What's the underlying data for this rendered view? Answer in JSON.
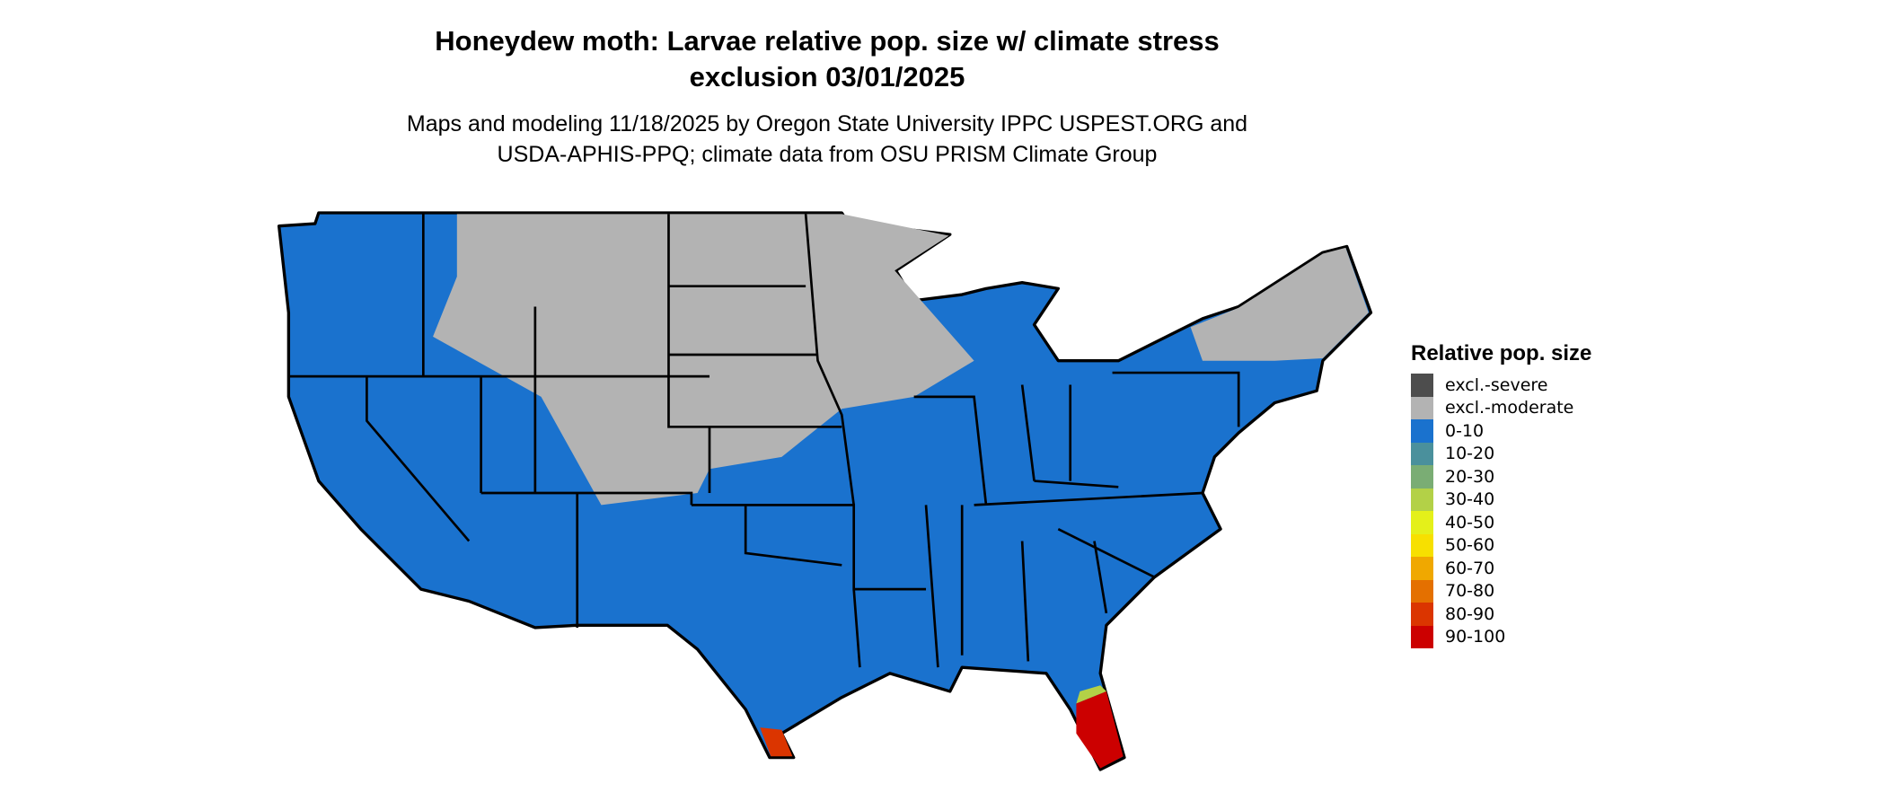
{
  "title_line1": "Honeydew moth: Larvae relative pop. size w/ climate stress",
  "title_line2": "exclusion 03/01/2025",
  "subtitle_line1": "Maps and modeling 11/18/2025 by Oregon State University IPPC USPEST.ORG and",
  "subtitle_line2": "USDA-APHIS-PPQ; climate data from OSU PRISM Climate Group",
  "legend": {
    "title": "Relative pop. size",
    "items": [
      {
        "label": "excl.-severe",
        "color": "#4d4d4d"
      },
      {
        "label": "excl.-moderate",
        "color": "#b3b3b3"
      },
      {
        "label": "0-10",
        "color": "#1a72ce"
      },
      {
        "label": "10-20",
        "color": "#4a909c"
      },
      {
        "label": "20-30",
        "color": "#7aad74"
      },
      {
        "label": "30-40",
        "color": "#b3d147"
      },
      {
        "label": "40-50",
        "color": "#e4f01a"
      },
      {
        "label": "50-60",
        "color": "#f7e000"
      },
      {
        "label": "60-70",
        "color": "#f0a800"
      },
      {
        "label": "70-80",
        "color": "#e47000"
      },
      {
        "label": "80-90",
        "color": "#db3500"
      },
      {
        "label": "90-100",
        "color": "#cc0000"
      }
    ]
  }
}
